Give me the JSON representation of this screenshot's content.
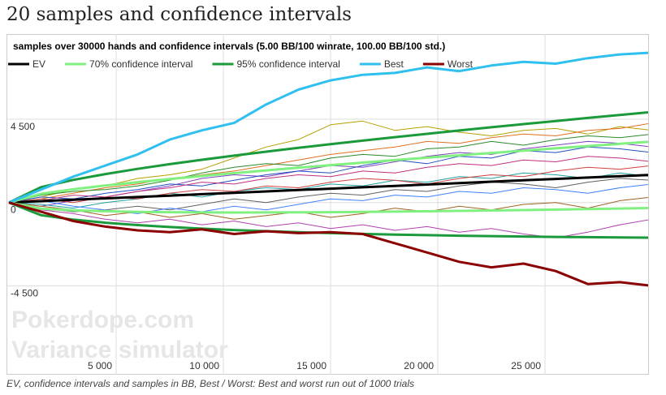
{
  "heading": "20 samples and confidence intervals",
  "caption": "EV, confidence intervals and samples in BB, Best / Worst: Best and worst run out of 1000 trials",
  "chart_data": {
    "type": "line",
    "title": "samples over 30000 hands and confidence intervals (5.00 BB/100 winrate, 100.00 BB/100 std.)",
    "watermark": [
      "Pokerdope.com",
      "Variance simulator"
    ],
    "grid": true,
    "legend": "top",
    "xlim": [
      0,
      30000
    ],
    "ylim": [
      -9300,
      9100
    ],
    "xticks": [
      {
        "value": 5000,
        "label": "5 000"
      },
      {
        "value": 10000,
        "label": "10 000"
      },
      {
        "value": 15000,
        "label": "15 000"
      },
      {
        "value": 20000,
        "label": "20 000"
      },
      {
        "value": 25000,
        "label": "25 000"
      }
    ],
    "yticks": [
      {
        "value": -4500,
        "label": "-4 500"
      },
      0,
      {
        "value": 4500,
        "label": "4 500"
      }
    ],
    "x": [
      0,
      1500,
      3000,
      4500,
      6000,
      7500,
      9000,
      10500,
      12000,
      13500,
      15000,
      16500,
      18000,
      19500,
      21000,
      22500,
      24000,
      25500,
      27000,
      28500,
      30000
    ],
    "samples": [
      {
        "color": "#b5a000",
        "values": [
          0,
          300,
          700,
          900,
          1300,
          1500,
          1800,
          2400,
          3000,
          3400,
          4200,
          4400,
          3900,
          4100,
          3800,
          3600,
          3900,
          4000,
          3700,
          4100,
          3900
        ]
      },
      {
        "color": "#e07020",
        "values": [
          0,
          200,
          500,
          800,
          1000,
          1300,
          1500,
          1700,
          2000,
          2300,
          2600,
          2800,
          3000,
          3300,
          3200,
          3500,
          3700,
          3600,
          3900,
          4000,
          4300
        ]
      },
      {
        "color": "#2a8a2a",
        "values": [
          0,
          400,
          600,
          700,
          900,
          1200,
          1600,
          1900,
          2100,
          2000,
          2400,
          2600,
          2500,
          2900,
          3000,
          3300,
          3100,
          3400,
          3600,
          3500,
          3700
        ]
      },
      {
        "color": "#8040c0",
        "values": [
          0,
          -200,
          100,
          300,
          600,
          900,
          1300,
          1500,
          1400,
          1700,
          2000,
          1900,
          2200,
          2500,
          2700,
          2600,
          2900,
          3100,
          3300,
          3200,
          3000
        ]
      },
      {
        "color": "#2050c0",
        "values": [
          0,
          300,
          200,
          500,
          700,
          1000,
          900,
          1200,
          1500,
          1700,
          1600,
          2000,
          2300,
          2100,
          2500,
          2400,
          2800,
          2700,
          3000,
          2900,
          2700
        ]
      },
      {
        "color": "#c03080",
        "values": [
          0,
          100,
          400,
          300,
          600,
          800,
          1100,
          1000,
          1300,
          1500,
          1400,
          1700,
          1600,
          1900,
          2100,
          2000,
          2300,
          2200,
          2500,
          2400,
          2200
        ]
      },
      {
        "color": "#20a0a0",
        "values": [
          0,
          -100,
          -300,
          0,
          200,
          500,
          300,
          600,
          800,
          700,
          1000,
          900,
          1200,
          1100,
          1400,
          1300,
          1600,
          1500,
          1300,
          1600,
          1400
        ]
      },
      {
        "color": "#d04040",
        "values": [
          0,
          200,
          0,
          300,
          200,
          500,
          700,
          600,
          900,
          800,
          1100,
          1300,
          1200,
          1000,
          1300,
          1500,
          1400,
          1700,
          1900,
          1800,
          2000
        ]
      },
      {
        "color": "#606060",
        "values": [
          0,
          -300,
          -500,
          -400,
          -200,
          -400,
          -100,
          200,
          0,
          300,
          500,
          400,
          700,
          600,
          900,
          1100,
          1000,
          800,
          1100,
          1300,
          1200
        ]
      },
      {
        "color": "#4080ff",
        "values": [
          0,
          100,
          -200,
          -400,
          -600,
          -300,
          -500,
          -200,
          -400,
          -100,
          200,
          100,
          400,
          300,
          600,
          500,
          800,
          700,
          500,
          800,
          1000
        ]
      },
      {
        "color": "#a06020",
        "values": [
          0,
          -200,
          -400,
          -700,
          -500,
          -800,
          -600,
          -900,
          -700,
          -500,
          -800,
          -600,
          -300,
          -500,
          -200,
          -400,
          -100,
          0,
          -300,
          100,
          300
        ]
      },
      {
        "color": "#b040b0",
        "values": [
          0,
          -400,
          -600,
          -900,
          -1100,
          -900,
          -1200,
          -1000,
          -1300,
          -1100,
          -1400,
          -1200,
          -1500,
          -1300,
          -1600,
          -1400,
          -1700,
          -1900,
          -1600,
          -1200,
          -900
        ]
      }
    ],
    "series": [
      {
        "name": "EV",
        "color": "#000000",
        "values": [
          0,
          75,
          150,
          225,
          300,
          375,
          450,
          525,
          600,
          675,
          750,
          825,
          900,
          975,
          1050,
          1125,
          1200,
          1275,
          1350,
          1425,
          1500
        ]
      },
      {
        "name": "70% confidence interval",
        "color": "#80f080",
        "upper": [
          0,
          476,
          717,
          920,
          1102,
          1272,
          1433,
          1587,
          1735,
          1879,
          2019,
          2156,
          2290,
          2422,
          2551,
          2679,
          2805,
          2929,
          3052,
          3174,
          3294
        ],
        "lower": [
          0,
          -326,
          -417,
          -470,
          -502,
          -522,
          -533,
          -537,
          -535,
          -529,
          -519,
          -506,
          -490,
          -472,
          -451,
          -429,
          -405,
          -379,
          -352,
          -324,
          -294
        ]
      },
      {
        "name": "95% confidence interval",
        "color": "#1a9a3a",
        "upper": [
          0,
          834,
          1224,
          1540,
          1818,
          2072,
          2309,
          2533,
          2747,
          2952,
          3150,
          3343,
          3530,
          3712,
          3890,
          4065,
          4236,
          4405,
          4571,
          4734,
          4895
        ],
        "lower": [
          0,
          -684,
          -924,
          -1090,
          -1218,
          -1322,
          -1409,
          -1483,
          -1547,
          -1602,
          -1650,
          -1693,
          -1730,
          -1762,
          -1790,
          -1815,
          -1836,
          -1855,
          -1871,
          -1884,
          -1895
        ]
      },
      {
        "name": "Best",
        "color": "#30c0f0",
        "values": [
          0,
          700,
          1400,
          2000,
          2600,
          3400,
          3900,
          4300,
          5300,
          6100,
          6600,
          6900,
          7000,
          7300,
          7100,
          7400,
          7600,
          7500,
          7800,
          8000,
          8100
        ]
      },
      {
        "name": "Worst",
        "color": "#8b0000",
        "values": [
          0,
          -500,
          -1000,
          -1300,
          -1500,
          -1600,
          -1450,
          -1700,
          -1550,
          -1650,
          -1600,
          -1700,
          -2200,
          -2700,
          -3200,
          -3500,
          -3300,
          -3700,
          -4400,
          -4300,
          -4500
        ]
      }
    ]
  }
}
